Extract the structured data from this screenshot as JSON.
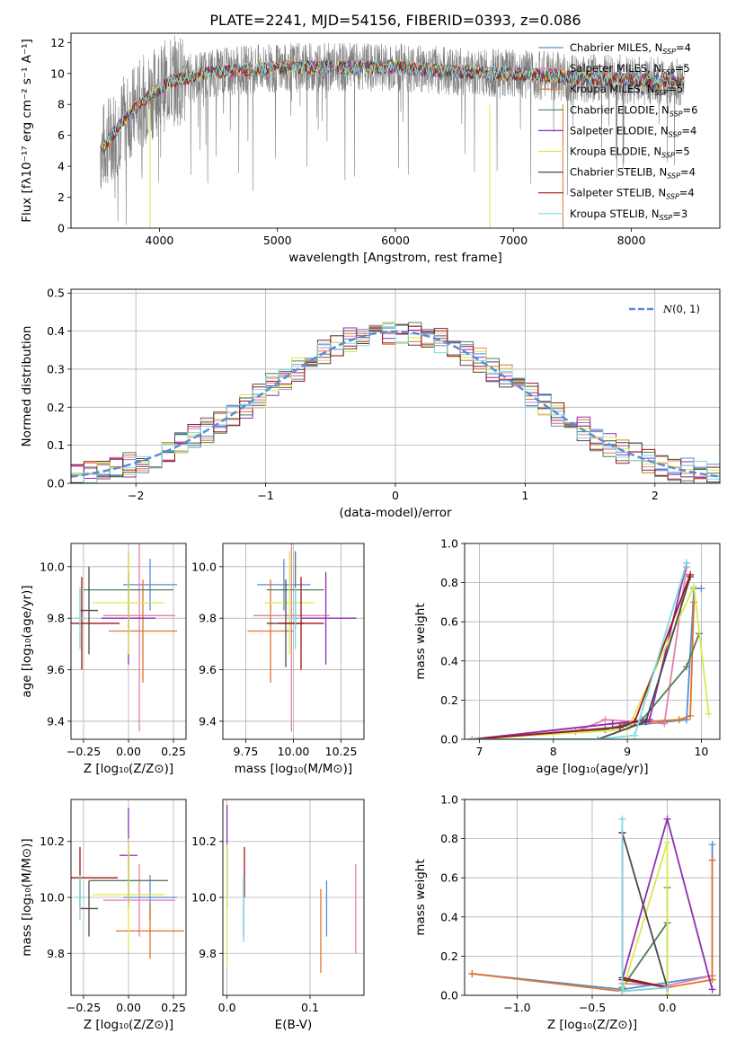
{
  "figure_title": "PLATE=2241, MJD=54156, FIBERID=0393, z=0.086",
  "colors": {
    "Chabrier MILES": "#5b8bd6",
    "Salpeter MILES": "#e47fa8",
    "Kroupa MILES": "#e0742a",
    "Chabrier ELODIE": "#4f7f5a",
    "Salpeter ELODIE": "#8e2fb2",
    "Kroupa ELODIE": "#d8ea4e",
    "Chabrier STELIB": "#4a4a4a",
    "Salpeter STELIB": "#a01515",
    "Kroupa STELIB": "#7adbe0",
    "data": "#808080",
    "normal": "#5b8bd6"
  },
  "chart_data": [
    {
      "id": "spectrum",
      "type": "line",
      "xlabel": "wavelength [Angstrom, rest frame]",
      "ylabel": "Flux [fλ10⁻¹⁷ erg cm⁻² s⁻¹ A⁻¹]",
      "xlim": [
        3250,
        8750
      ],
      "ylim": [
        0,
        12.6
      ],
      "xticks": [
        4000,
        5000,
        6000,
        7000,
        8000
      ],
      "yticks": [
        0,
        2,
        4,
        6,
        8,
        10,
        12
      ],
      "grid": false,
      "legend": "top-right",
      "legend_entries": [
        "Chabrier MILES, N_SSP=4",
        "Salpeter MILES, N_SSP=5",
        "Kroupa MILES, N_SSP=5",
        "Chabrier ELODIE, N_SSP=6",
        "Salpeter ELODIE, N_SSP=4",
        "Kroupa ELODIE, N_SSP=5",
        "Chabrier STELIB, N_SSP=4",
        "Salpeter STELIB, N_SSP=4",
        "Kroupa STELIB, N_SSP=3"
      ],
      "continuum": {
        "x": [
          3500,
          3700,
          3900,
          4100,
          4400,
          4800,
          5200,
          5600,
          6000,
          6400,
          6800,
          7200,
          7600,
          8000,
          8400
        ],
        "y": [
          5.0,
          7.0,
          8.5,
          9.5,
          10.0,
          10.3,
          10.4,
          10.4,
          10.4,
          10.2,
          10.0,
          9.9,
          9.7,
          9.6,
          9.4
        ]
      }
    },
    {
      "id": "residuals",
      "type": "histogram",
      "xlabel": "(data-model)/error",
      "ylabel": "Normed distribution",
      "xlim": [
        -2.5,
        2.5
      ],
      "ylim": [
        0,
        0.51
      ],
      "xticks": [
        -2,
        -1,
        0,
        1,
        2
      ],
      "yticks": [
        0.0,
        0.1,
        0.2,
        0.3,
        0.4,
        0.5
      ],
      "grid": true,
      "legend": "top-right",
      "legend_entries": [
        "N(0, 1)"
      ],
      "bin_width": 0.1,
      "bin_start": -2.5
    },
    {
      "id": "age_vs_Z",
      "type": "scatter",
      "xlabel": "Z [log₁₀(Z/Z⊙)]",
      "ylabel": "age [log₁₀(age/yr)]",
      "xlim": [
        -0.32,
        0.32
      ],
      "ylim": [
        9.33,
        10.09
      ],
      "xticks": [
        -0.25,
        0.0,
        0.25
      ],
      "yticks": [
        9.4,
        9.6,
        9.8,
        10.0
      ],
      "grid": true,
      "points": [
        {
          "model": "Chabrier MILES",
          "x": 0.12,
          "y": 9.93,
          "xerr": 0.15,
          "yerr": 0.1
        },
        {
          "model": "Salpeter MILES",
          "x": 0.06,
          "y": 9.81,
          "xerr": 0.2,
          "yerr": 0.45
        },
        {
          "model": "Kroupa MILES",
          "x": 0.08,
          "y": 9.75,
          "xerr": 0.19,
          "yerr": 0.2
        },
        {
          "model": "Chabrier ELODIE",
          "x": 0.0,
          "y": 9.91,
          "xerr": 0.25,
          "yerr": 0.15
        },
        {
          "model": "Salpeter ELODIE",
          "x": 0.0,
          "y": 9.8,
          "xerr": 0.15,
          "yerr": 0.18
        },
        {
          "model": "Kroupa ELODIE",
          "x": 0.0,
          "y": 9.86,
          "xerr": 0.2,
          "yerr": 0.2
        },
        {
          "model": "Chabrier STELIB",
          "x": -0.22,
          "y": 9.83,
          "xerr": 0.05,
          "yerr": 0.17
        },
        {
          "model": "Salpeter STELIB",
          "x": -0.26,
          "y": 9.78,
          "xerr": 0.21,
          "yerr": 0.18
        },
        {
          "model": "Kroupa STELIB",
          "x": -0.27,
          "y": 9.8,
          "xerr": 0.03,
          "yerr": 0.12
        }
      ]
    },
    {
      "id": "age_vs_mass",
      "type": "scatter",
      "xlabel": "mass [log₁₀(M/M⊙)]",
      "ylabel": "",
      "xlim": [
        9.63,
        10.37
      ],
      "ylim": [
        9.33,
        10.09
      ],
      "xticks": [
        9.75,
        10.0,
        10.25
      ],
      "yticks": [
        9.4,
        9.6,
        9.8,
        10.0
      ],
      "grid": true,
      "points": [
        {
          "model": "Chabrier MILES",
          "x": 9.95,
          "y": 9.93,
          "xerr": 0.14,
          "yerr": 0.1
        },
        {
          "model": "Salpeter MILES",
          "x": 9.99,
          "y": 9.81,
          "xerr": 0.2,
          "yerr": 0.45
        },
        {
          "model": "Kroupa MILES",
          "x": 9.88,
          "y": 9.75,
          "xerr": 0.12,
          "yerr": 0.2
        },
        {
          "model": "Chabrier ELODIE",
          "x": 10.01,
          "y": 9.91,
          "xerr": 0.15,
          "yerr": 0.15
        },
        {
          "model": "Salpeter ELODIE",
          "x": 10.17,
          "y": 9.8,
          "xerr": 0.16,
          "yerr": 0.18
        },
        {
          "model": "Kroupa ELODIE",
          "x": 9.98,
          "y": 9.86,
          "xerr": 0.13,
          "yerr": 0.2
        },
        {
          "model": "Chabrier STELIB",
          "x": 9.96,
          "y": 9.78,
          "xerr": 0.1,
          "yerr": 0.17
        },
        {
          "model": "Salpeter STELIB",
          "x": 10.04,
          "y": 9.78,
          "xerr": 0.12,
          "yerr": 0.18
        },
        {
          "model": "Kroupa STELIB",
          "x": 10.01,
          "y": 9.8,
          "xerr": 0.03,
          "yerr": 0.12
        }
      ]
    },
    {
      "id": "weight_vs_age",
      "type": "line",
      "xlabel": "age [log₁₀(age/yr)]",
      "ylabel": "mass weight",
      "xlim": [
        6.8,
        10.25
      ],
      "ylim": [
        0,
        1.0
      ],
      "xticks": [
        7,
        8,
        9,
        10
      ],
      "yticks": [
        0.0,
        0.2,
        0.4,
        0.6,
        0.8,
        1.0
      ],
      "grid": true,
      "series": [
        {
          "model": "Chabrier MILES",
          "x": [
            6.9,
            8.8,
            9.8,
            9.9,
            10.0
          ],
          "y": [
            0.0,
            0.06,
            0.1,
            0.77,
            0.77
          ]
        },
        {
          "model": "Salpeter MILES",
          "x": [
            6.9,
            8.3,
            8.7,
            9.5,
            9.8
          ],
          "y": [
            0.0,
            0.04,
            0.1,
            0.08,
            0.88
          ]
        },
        {
          "model": "Kroupa MILES",
          "x": [
            6.9,
            8.8,
            9.7,
            9.85,
            9.9
          ],
          "y": [
            0.0,
            0.08,
            0.1,
            0.12,
            0.7
          ]
        },
        {
          "model": "Chabrier ELODIE",
          "x": [
            6.9,
            8.7,
            9.2,
            9.8,
            9.97
          ],
          "y": [
            0.0,
            0.05,
            0.1,
            0.37,
            0.54
          ]
        },
        {
          "model": "Salpeter ELODIE",
          "x": [
            6.9,
            8.8,
            9.3,
            9.8
          ],
          "y": [
            0.0,
            0.08,
            0.1,
            0.9
          ]
        },
        {
          "model": "Kroupa ELODIE",
          "x": [
            6.9,
            9.0,
            9.9,
            10.1
          ],
          "y": [
            0.0,
            0.05,
            0.78,
            0.13
          ]
        },
        {
          "model": "Chabrier STELIB",
          "x": [
            6.9,
            8.6,
            9.25,
            9.85
          ],
          "y": [
            0.0,
            0.0,
            0.09,
            0.83
          ]
        },
        {
          "model": "Salpeter STELIB",
          "x": [
            6.9,
            8.9,
            9.1,
            9.85
          ],
          "y": [
            0.0,
            0.06,
            0.09,
            0.84
          ]
        },
        {
          "model": "Kroupa STELIB",
          "x": [
            6.9,
            8.6,
            9.1,
            9.8
          ],
          "y": [
            0.0,
            0.0,
            0.02,
            0.9
          ]
        }
      ]
    },
    {
      "id": "mass_vs_Z",
      "type": "scatter",
      "xlabel": "Z [log₁₀(Z/Z⊙)]",
      "ylabel": "mass [log₁₀(M/M⊙)]",
      "xlim": [
        -0.32,
        0.32
      ],
      "ylim": [
        9.65,
        10.35
      ],
      "xticks": [
        -0.25,
        0.0,
        0.25
      ],
      "yticks": [
        9.8,
        10.0,
        10.2
      ],
      "grid": true,
      "points": [
        {
          "model": "Chabrier MILES",
          "x": 0.12,
          "y": 10.0,
          "xerr": 0.15,
          "yerr": 0.08
        },
        {
          "model": "Salpeter MILES",
          "x": 0.06,
          "y": 9.99,
          "xerr": 0.2,
          "yerr": 0.13
        },
        {
          "model": "Kroupa MILES",
          "x": 0.12,
          "y": 9.88,
          "xerr": 0.19,
          "yerr": 0.1
        },
        {
          "model": "Chabrier ELODIE",
          "x": 0.0,
          "y": 10.06,
          "xerr": 0.22,
          "yerr": 0.1
        },
        {
          "model": "Salpeter ELODIE",
          "x": 0.0,
          "y": 10.15,
          "xerr": 0.05,
          "yerr": 0.17
        },
        {
          "model": "Kroupa ELODIE",
          "x": 0.0,
          "y": 10.01,
          "xerr": 0.2,
          "yerr": 0.2
        },
        {
          "model": "Chabrier STELIB",
          "x": -0.22,
          "y": 9.96,
          "xerr": 0.05,
          "yerr": 0.1
        },
        {
          "model": "Salpeter STELIB",
          "x": -0.27,
          "y": 10.07,
          "xerr": 0.21,
          "yerr": 0.11
        },
        {
          "model": "Kroupa STELIB",
          "x": -0.27,
          "y": 10.0,
          "xerr": 0.03,
          "yerr": 0.08
        }
      ]
    },
    {
      "id": "mass_vs_ebv",
      "type": "scatter",
      "xlabel": "E(B-V)",
      "ylabel": "",
      "xlim": [
        -0.005,
        0.165
      ],
      "ylim": [
        9.65,
        10.35
      ],
      "xticks": [
        0.0,
        0.1
      ],
      "yticks": [
        9.8,
        10.0,
        10.2
      ],
      "grid": true,
      "points": [
        {
          "model": "Chabrier MILES",
          "x": 0.12,
          "y": 9.96,
          "xerr": 0,
          "yerr": 0.1
        },
        {
          "model": "Salpeter MILES",
          "x": 0.155,
          "y": 9.96,
          "xerr": 0,
          "yerr": 0.16
        },
        {
          "model": "Kroupa MILES",
          "x": 0.113,
          "y": 9.88,
          "xerr": 0,
          "yerr": 0.15
        },
        {
          "model": "Chabrier ELODIE",
          "x": 0.0,
          "y": 10.06,
          "xerr": 0,
          "yerr": 0.1
        },
        {
          "model": "Salpeter ELODIE",
          "x": 0.0,
          "y": 10.17,
          "xerr": 0,
          "yerr": 0.16
        },
        {
          "model": "Kroupa ELODIE",
          "x": 0.0,
          "y": 9.97,
          "xerr": 0,
          "yerr": 0.22
        },
        {
          "model": "Chabrier STELIB",
          "x": 0.02,
          "y": 9.96,
          "xerr": 0,
          "yerr": 0.1
        },
        {
          "model": "Salpeter STELIB",
          "x": 0.021,
          "y": 10.09,
          "xerr": 0,
          "yerr": 0.09
        },
        {
          "model": "Kroupa STELIB",
          "x": 0.02,
          "y": 9.96,
          "xerr": 0,
          "yerr": 0.12
        }
      ]
    },
    {
      "id": "weight_vs_Z",
      "type": "line",
      "xlabel": "Z [log₁₀(Z/Z⊙)]",
      "ylabel": "mass weight",
      "xlim": [
        -1.35,
        0.35
      ],
      "ylim": [
        0,
        1.0
      ],
      "xticks": [
        -1.0,
        -0.5,
        0.0
      ],
      "yticks": [
        0.0,
        0.2,
        0.4,
        0.6,
        0.8,
        1.0
      ],
      "grid": true,
      "series": [
        {
          "model": "Chabrier MILES",
          "x": [
            -1.3,
            -0.3,
            0.3,
            0.3
          ],
          "y": [
            0.11,
            0.03,
            0.1,
            0.77
          ]
        },
        {
          "model": "Salpeter MILES",
          "x": [
            -0.3,
            0.0,
            0.3
          ],
          "y": [
            0.06,
            0.05,
            0.1
          ]
        },
        {
          "model": "Kroupa MILES",
          "x": [
            -1.3,
            -0.3,
            0.0,
            0.3,
            0.3
          ],
          "y": [
            0.11,
            0.02,
            0.04,
            0.08,
            0.69
          ]
        },
        {
          "model": "Chabrier ELODIE",
          "x": [
            -0.3,
            0.0,
            0.0,
            0.0
          ],
          "y": [
            0.04,
            0.37,
            0.55,
            0.0
          ]
        },
        {
          "model": "Salpeter ELODIE",
          "x": [
            -0.3,
            0.0,
            0.3
          ],
          "y": [
            0.08,
            0.9,
            0.03
          ]
        },
        {
          "model": "Kroupa ELODIE",
          "x": [
            -0.3,
            0.0,
            0.0
          ],
          "y": [
            0.02,
            0.78,
            0.0
          ]
        },
        {
          "model": "Chabrier STELIB",
          "x": [
            -0.3,
            0.0,
            -0.3
          ],
          "y": [
            0.83,
            0.04,
            0.08
          ]
        },
        {
          "model": "Salpeter STELIB",
          "x": [
            -0.3,
            -0.3,
            0.0
          ],
          "y": [
            0.83,
            0.09,
            0.04
          ]
        },
        {
          "model": "Kroupa STELIB",
          "x": [
            -0.3,
            -0.3,
            0.0
          ],
          "y": [
            0.9,
            0.02,
            0.04
          ]
        }
      ]
    }
  ]
}
